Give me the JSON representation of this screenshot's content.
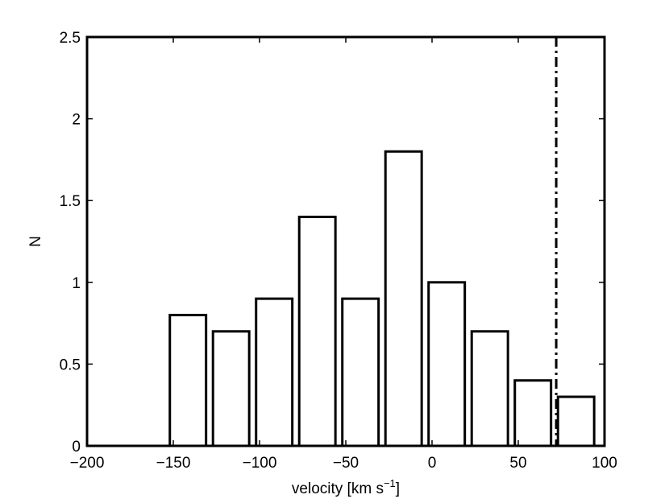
{
  "chart_data": {
    "type": "bar",
    "title": "",
    "xlabel": "velocity [km s",
    "xlabel_superscript": "−1",
    "xlabel_suffix": "]",
    "ylabel": "N",
    "xlim": [
      -200,
      100
    ],
    "ylim": [
      0,
      2.5
    ],
    "x_ticks": [
      -200,
      -150,
      -100,
      -50,
      0,
      50,
      100
    ],
    "x_tick_labels": [
      "−200",
      "−150",
      "−100",
      "−50",
      "0",
      "50",
      "100"
    ],
    "y_ticks": [
      0,
      0.5,
      1,
      1.5,
      2,
      2.5
    ],
    "y_tick_labels": [
      "0",
      "0.5",
      "1",
      "1.5",
      "2",
      "2.5"
    ],
    "bar_width": 21,
    "x": [
      -141.5,
      -116.5,
      -91.5,
      -66.5,
      -41.5,
      -16.5,
      8.5,
      33.5,
      58.5,
      83.5
    ],
    "values": [
      0.8,
      0.7,
      0.9,
      1.4,
      0.9,
      1.8,
      1.0,
      0.7,
      0.4,
      0.3
    ],
    "vline": {
      "x": 72,
      "style": "dash-dot"
    },
    "grid": false,
    "bar_fill": "#ffffff",
    "bar_edge": "#000000"
  }
}
